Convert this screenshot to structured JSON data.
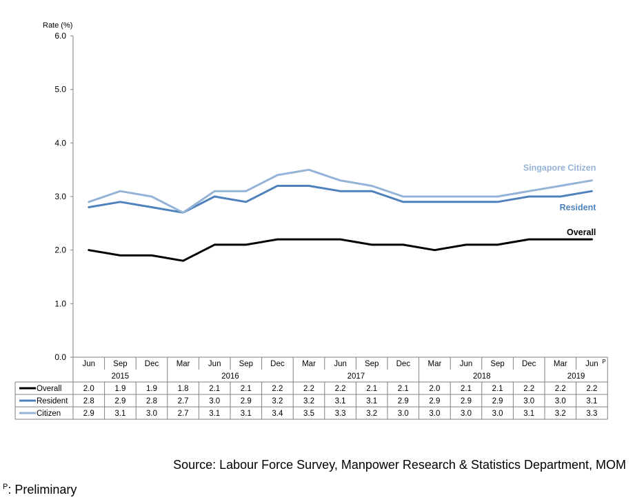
{
  "chart_data": {
    "type": "line",
    "ylabel": "Rate (%)",
    "ylim": [
      0,
      6
    ],
    "yticks": [
      "0.0",
      "1.0",
      "2.0",
      "3.0",
      "4.0",
      "5.0",
      "6.0"
    ],
    "categories": [
      "Jun",
      "Sep",
      "Dec",
      "Mar",
      "Jun",
      "Sep",
      "Dec",
      "Mar",
      "Jun",
      "Sep",
      "Dec",
      "Mar",
      "Jun",
      "Sep",
      "Dec",
      "Mar",
      "Jun"
    ],
    "preliminary_marker": "P",
    "years": [
      {
        "label": "2015",
        "start": 0,
        "end": 2
      },
      {
        "label": "2016",
        "start": 3,
        "end": 6
      },
      {
        "label": "2017",
        "start": 7,
        "end": 10
      },
      {
        "label": "2018",
        "start": 11,
        "end": 14
      },
      {
        "label": "2019",
        "start": 15,
        "end": 16
      }
    ],
    "series": [
      {
        "name": "Overall",
        "color": "#000000",
        "label": "Overall",
        "values": [
          2.0,
          1.9,
          1.9,
          1.8,
          2.1,
          2.1,
          2.2,
          2.2,
          2.2,
          2.1,
          2.1,
          2.0,
          2.1,
          2.1,
          2.2,
          2.2,
          2.2
        ]
      },
      {
        "name": "Resident",
        "color": "#4f81bd",
        "label": "Resident",
        "values": [
          2.8,
          2.9,
          2.8,
          2.7,
          3.0,
          2.9,
          3.2,
          3.2,
          3.1,
          3.1,
          2.9,
          2.9,
          2.9,
          2.9,
          3.0,
          3.0,
          3.1
        ]
      },
      {
        "name": "Citizen",
        "color": "#95b3d7",
        "label": "Singapore Citizen",
        "values": [
          2.9,
          3.1,
          3.0,
          2.7,
          3.1,
          3.1,
          3.4,
          3.5,
          3.3,
          3.2,
          3.0,
          3.0,
          3.0,
          3.0,
          3.1,
          3.2,
          3.3
        ]
      }
    ],
    "table_values": {
      "Overall": [
        "2.0",
        "1.9",
        "1.9",
        "1.8",
        "2.1",
        "2.1",
        "2.2",
        "2.2",
        "2.2",
        "2.1",
        "2.1",
        "2.0",
        "2.1",
        "2.1",
        "2.2",
        "2.2",
        "2.2"
      ],
      "Resident": [
        "2.8",
        "2.9",
        "2.8",
        "2.7",
        "3.0",
        "2.9",
        "3.2",
        "3.2",
        "3.1",
        "3.1",
        "2.9",
        "2.9",
        "2.9",
        "2.9",
        "3.0",
        "3.0",
        "3.1"
      ],
      "Citizen": [
        "2.9",
        "3.1",
        "3.0",
        "2.7",
        "3.1",
        "3.1",
        "3.4",
        "3.5",
        "3.3",
        "3.2",
        "3.0",
        "3.0",
        "3.0",
        "3.0",
        "3.1",
        "3.2",
        "3.3"
      ]
    },
    "grid": false,
    "legend": "data table"
  },
  "source": "Source: Labour Force Survey, Manpower Research & Statistics Department, MOM",
  "footnote": {
    "marker": "P",
    "text": ": Preliminary"
  }
}
